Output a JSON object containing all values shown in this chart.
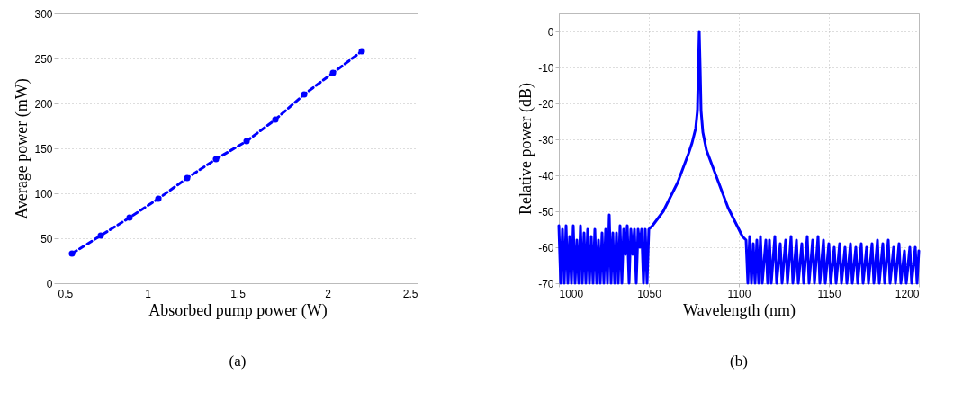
{
  "chart_data": [
    {
      "type": "line",
      "title": "(a)",
      "xlabel": "Absorbed pump power (W)",
      "ylabel": "Average power (mW)",
      "x": [
        0.58,
        0.74,
        0.9,
        1.06,
        1.22,
        1.38,
        1.55,
        1.71,
        1.87,
        2.03,
        2.19
      ],
      "series": [
        {
          "color": "#0000ff",
          "values": [
            33,
            53,
            73,
            94,
            117,
            138,
            158,
            182,
            210,
            234,
            258
          ]
        }
      ],
      "xlim": [
        0.5,
        2.5
      ],
      "xticks": [
        0.5,
        1,
        1.5,
        2,
        2.5
      ],
      "ylim": [
        0,
        300
      ],
      "yticks": [
        0,
        50,
        100,
        150,
        200,
        250,
        300
      ],
      "grid": true,
      "marker": "circle",
      "line_style": "dashed"
    },
    {
      "type": "line",
      "title": "(b)",
      "xlabel": "Wavelength (nm)",
      "ylabel": "Relative power (dB)",
      "x": [
        1000,
        1001,
        1002,
        1003,
        1004,
        1005,
        1006,
        1007,
        1008,
        1009,
        1010,
        1011,
        1012,
        1013,
        1014,
        1015,
        1016,
        1017,
        1018,
        1019,
        1020,
        1021,
        1022,
        1023,
        1024,
        1025,
        1026,
        1027,
        1028,
        1029,
        1030,
        1031,
        1032,
        1033,
        1034,
        1035,
        1036,
        1037,
        1038,
        1039,
        1040,
        1041,
        1042,
        1043,
        1044,
        1045,
        1046,
        1047,
        1048,
        1049,
        1050,
        1052,
        1055,
        1058,
        1060,
        1063,
        1066,
        1069,
        1072,
        1074,
        1076,
        1077,
        1077.5,
        1078,
        1078.5,
        1079,
        1080,
        1082,
        1085,
        1088,
        1091,
        1094,
        1097,
        1100,
        1102,
        1104,
        1105,
        1106,
        1107,
        1108,
        1109,
        1110,
        1111,
        1112,
        1113,
        1115,
        1116,
        1117,
        1118,
        1120,
        1121,
        1123,
        1124,
        1126,
        1127,
        1129,
        1130,
        1132,
        1133,
        1135,
        1136,
        1138,
        1139,
        1141,
        1142,
        1144,
        1145,
        1147,
        1148,
        1150,
        1151,
        1153,
        1154,
        1156,
        1157,
        1159,
        1160,
        1162,
        1163,
        1165,
        1166,
        1168,
        1169,
        1171,
        1172,
        1174,
        1175,
        1177,
        1178,
        1180,
        1181,
        1183,
        1184,
        1186,
        1187,
        1189,
        1190,
        1192,
        1193,
        1195,
        1196,
        1198,
        1199,
        1200
      ],
      "series": [
        {
          "color": "#0000ff",
          "values": [
            -54,
            -70,
            -55,
            -70,
            -54,
            -70,
            -57,
            -70,
            -54,
            -70,
            -58,
            -70,
            -54,
            -70,
            -56,
            -70,
            -55,
            -70,
            -57,
            -70,
            -55,
            -70,
            -58,
            -70,
            -56,
            -70,
            -55,
            -70,
            -51,
            -70,
            -56,
            -70,
            -56,
            -70,
            -54,
            -70,
            -55,
            -62,
            -54,
            -70,
            -55,
            -62,
            -55,
            -70,
            -55,
            -60,
            -55,
            -70,
            -55,
            -70,
            -55,
            -54,
            -52,
            -50,
            -48,
            -45,
            -42,
            -38,
            -34,
            -31,
            -27,
            -22,
            -10,
            0,
            -10,
            -22,
            -28,
            -33,
            -37,
            -41,
            -45,
            -49,
            -52,
            -55,
            -57,
            -58,
            -70,
            -57,
            -70,
            -59,
            -70,
            -58,
            -70,
            -57,
            -70,
            -58,
            -70,
            -58,
            -70,
            -57,
            -70,
            -59,
            -70,
            -58,
            -70,
            -57,
            -70,
            -58,
            -70,
            -59,
            -70,
            -57,
            -70,
            -58,
            -70,
            -57,
            -70,
            -58,
            -70,
            -59,
            -70,
            -60,
            -70,
            -59,
            -70,
            -60,
            -70,
            -59,
            -70,
            -60,
            -70,
            -59,
            -70,
            -60,
            -70,
            -59,
            -70,
            -58,
            -70,
            -59,
            -70,
            -58,
            -70,
            -60,
            -70,
            -59,
            -70,
            -61,
            -70,
            -60,
            -70,
            -60,
            -70,
            -61
          ]
        }
      ],
      "xlim": [
        1000,
        1200
      ],
      "xticks": [
        1000,
        1050,
        1100,
        1150,
        1200
      ],
      "ylim": [
        -70,
        5
      ],
      "yticks": [
        -70,
        -60,
        -50,
        -40,
        -30,
        -20,
        -10,
        0
      ],
      "grid": true,
      "line_style": "solid"
    }
  ]
}
